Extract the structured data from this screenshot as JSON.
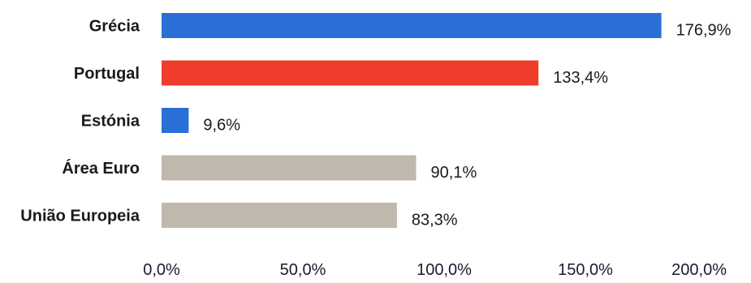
{
  "chart_data": {
    "type": "bar",
    "orientation": "horizontal",
    "categories": [
      "Grécia",
      "Portugal",
      "Estónia",
      "Área Euro",
      "União Europeia"
    ],
    "values": [
      176.9,
      133.4,
      9.6,
      90.1,
      83.3
    ],
    "value_labels": [
      "176,9%",
      "133,4%",
      "9,6%",
      "90,1%",
      "83,3%"
    ],
    "bar_colors": [
      "#2a6fd6",
      "#f03c2a",
      "#2a6fd6",
      "#bfb8ad",
      "#bfb8ad"
    ],
    "xlim": [
      0,
      200
    ],
    "x_ticks": [
      0,
      50,
      100,
      150,
      200
    ],
    "x_tick_labels": [
      "0,0%",
      "50,0%",
      "100,0%",
      "150,0%",
      "200,0%"
    ],
    "grid": false,
    "legend": "none",
    "title": "",
    "xlabel": "",
    "ylabel": ""
  }
}
